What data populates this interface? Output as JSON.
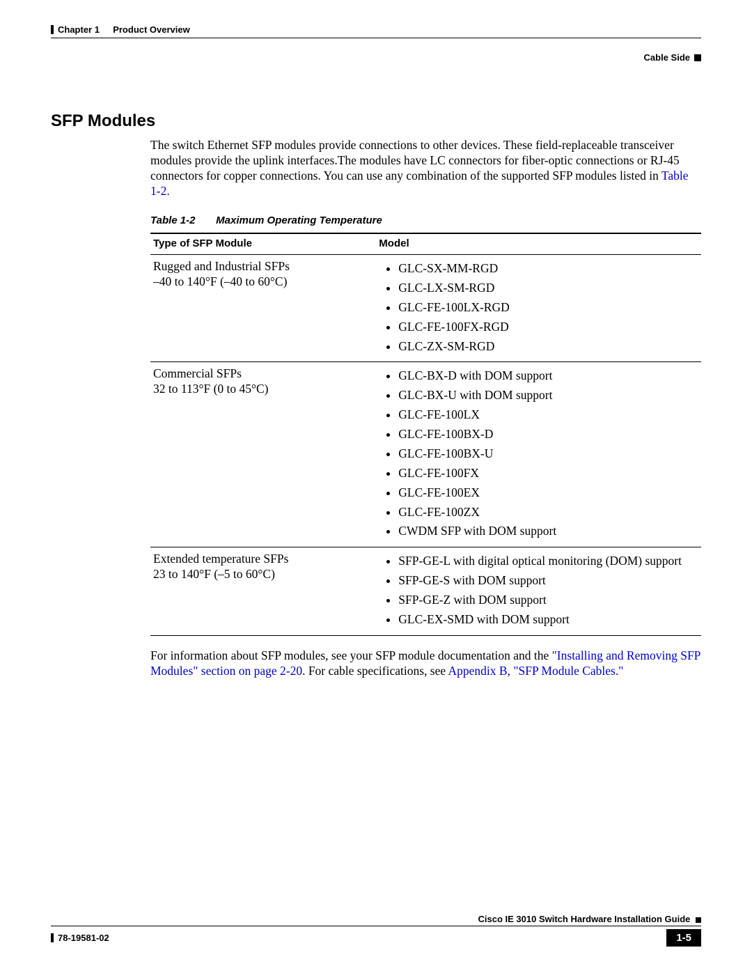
{
  "header": {
    "chapter": "Chapter 1",
    "title": "Product Overview",
    "section": "Cable Side"
  },
  "section_title": "SFP Modules",
  "intro": {
    "text_before_link": "The switch Ethernet SFP modules provide connections to other devices. These field-replaceable transceiver modules provide the uplink interfaces.The modules have LC connectors for fiber-optic connections or RJ-45 connectors for copper connections. You can use any combination of the supported SFP modules listed in ",
    "link": "Table 1-2",
    "after": "."
  },
  "table": {
    "caption_num": "Table 1-2",
    "caption_title": "Maximum Operating Temperature",
    "headers": [
      "Type of SFP Module",
      "Model"
    ],
    "rows": [
      {
        "type_line1": "Rugged and Industrial SFPs",
        "type_line2": "–40 to 140°F (–40 to 60°C)",
        "models": [
          "GLC-SX-MM-RGD",
          "GLC-LX-SM-RGD",
          "GLC-FE-100LX-RGD",
          "GLC-FE-100FX-RGD",
          "GLC-ZX-SM-RGD"
        ]
      },
      {
        "type_line1": "Commercial SFPs",
        "type_line2": "32 to 113°F (0 to 45°C)",
        "models": [
          "GLC-BX-D with DOM support",
          "GLC-BX-U with DOM support",
          "GLC-FE-100LX",
          "GLC-FE-100BX-D",
          "GLC-FE-100BX-U",
          "GLC-FE-100FX",
          "GLC-FE-100EX",
          "GLC-FE-100ZX",
          "CWDM SFP with DOM support"
        ]
      },
      {
        "type_line1": "Extended temperature SFPs",
        "type_line2": "23 to 140°F (–5 to 60°C)",
        "models": [
          "SFP-GE-L with digital optical monitoring (DOM) support",
          "SFP-GE-S with DOM support",
          "SFP-GE-Z with DOM support",
          "GLC-EX-SMD with DOM support"
        ]
      }
    ]
  },
  "closing": {
    "t1": "For information about SFP modules, see your SFP module documentation and the ",
    "l1": "\"Installing and Removing SFP Modules\" section on page 2-20",
    "t2": ". For cable specifications, see ",
    "l2": "Appendix B, \"SFP Module Cables.\""
  },
  "footer": {
    "guide": "Cisco IE 3010 Switch Hardware Installation Guide",
    "docnum": "78-19581-02",
    "pagenum": "1-5"
  }
}
